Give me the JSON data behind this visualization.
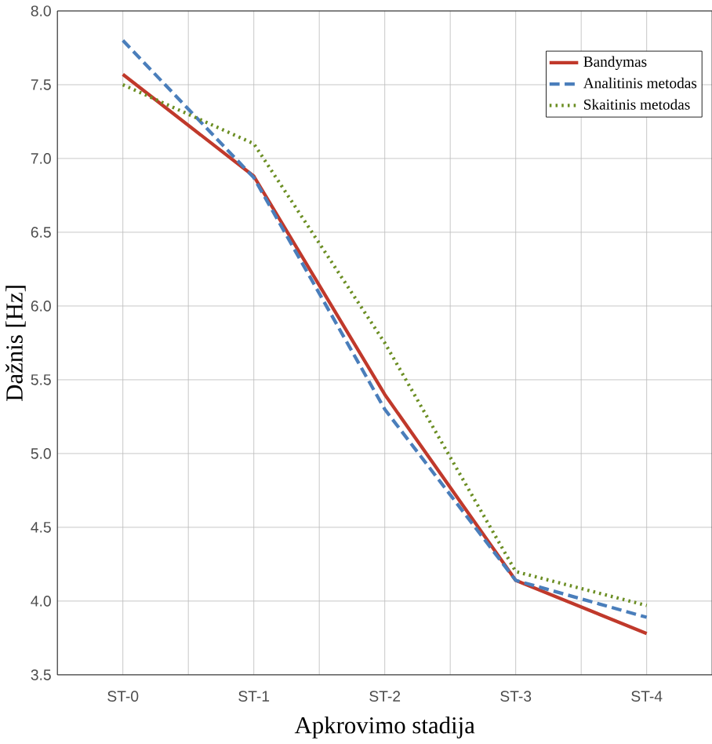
{
  "chart_data": {
    "type": "line",
    "xlabel": "Apkrovimo stadija",
    "ylabel": "Dažnis [Hz]",
    "categories": [
      "ST-0",
      "ST-1",
      "ST-2",
      "ST-3",
      "ST-4"
    ],
    "series": [
      {
        "name": "Bandymas",
        "color": "#c0392b",
        "line_style": "solid",
        "values": [
          7.57,
          6.88,
          5.4,
          4.14,
          3.78
        ]
      },
      {
        "name": "Analitinis metodas",
        "color": "#4a7ebb",
        "line_style": "dashed",
        "values": [
          7.8,
          6.87,
          5.3,
          4.14,
          3.89
        ]
      },
      {
        "name": "Skaitinis metodas",
        "color": "#6b8e23",
        "line_style": "dotted",
        "values": [
          7.5,
          7.1,
          5.75,
          4.2,
          3.97
        ]
      }
    ],
    "ylim": [
      3.5,
      8.0
    ],
    "yticks": [
      {
        "value": 3.5,
        "label": "3.5"
      },
      {
        "value": 4.0,
        "label": "4.0"
      },
      {
        "value": 4.5,
        "label": "4.5"
      },
      {
        "value": 5.0,
        "label": "5.0"
      },
      {
        "value": 5.5,
        "label": "5.5"
      },
      {
        "value": 6.0,
        "label": "6.0"
      },
      {
        "value": 6.5,
        "label": "6.5"
      },
      {
        "value": 7.0,
        "label": "7.0"
      },
      {
        "value": 7.5,
        "label": "7.5"
      },
      {
        "value": 8.0,
        "label": "8.0"
      }
    ],
    "grid": true,
    "legend": "top right",
    "marker": "none"
  }
}
